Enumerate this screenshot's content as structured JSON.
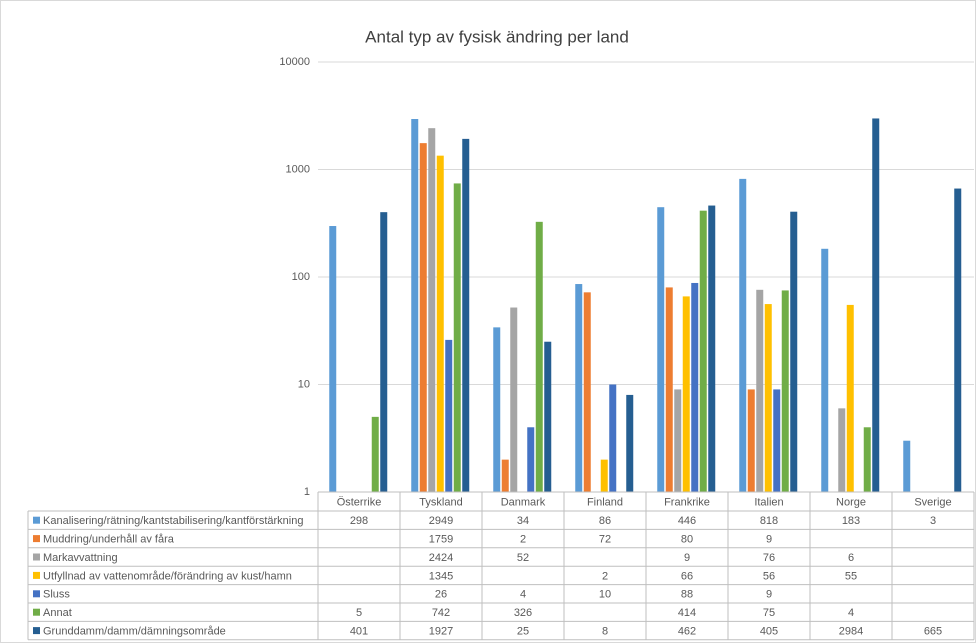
{
  "chart_data": {
    "type": "bar",
    "title": "Antal typ av fysisk ändring per land",
    "categories": [
      "Österrike",
      "Tyskland",
      "Danmark",
      "Finland",
      "Frankrike",
      "Italien",
      "Norge",
      "Sverige"
    ],
    "log_scale": true,
    "grid": true,
    "ylim": [
      1,
      10000
    ],
    "yticks": [
      1,
      10,
      100,
      1000,
      10000
    ],
    "series": [
      {
        "name": "Kanalisering/rätning/kantstabilisering/kantförstärkning",
        "color": "#5b9bd5",
        "values": [
          298,
          2949,
          34,
          86,
          446,
          818,
          183,
          3
        ]
      },
      {
        "name": "Muddring/underhåll av fåra",
        "color": "#ed7d31",
        "values": [
          null,
          1759,
          2,
          72,
          80,
          9,
          null,
          null
        ]
      },
      {
        "name": "Markavvattning",
        "color": "#a5a5a5",
        "values": [
          null,
          2424,
          52,
          null,
          9,
          76,
          6,
          null
        ]
      },
      {
        "name": "Utfyllnad av vattenområde/förändring av kust/hamn",
        "color": "#ffc000",
        "values": [
          null,
          1345,
          null,
          2,
          66,
          56,
          55,
          null
        ]
      },
      {
        "name": "Sluss",
        "color": "#4472c4",
        "values": [
          null,
          26,
          4,
          10,
          88,
          9,
          null,
          null
        ]
      },
      {
        "name": "Annat",
        "color": "#70ad47",
        "values": [
          5,
          742,
          326,
          null,
          414,
          75,
          4,
          null
        ]
      },
      {
        "name": "Grunddamm/damm/dämningsområde",
        "color": "#255e91",
        "values": [
          401,
          1927,
          25,
          8,
          462,
          405,
          2984,
          665
        ]
      }
    ]
  }
}
